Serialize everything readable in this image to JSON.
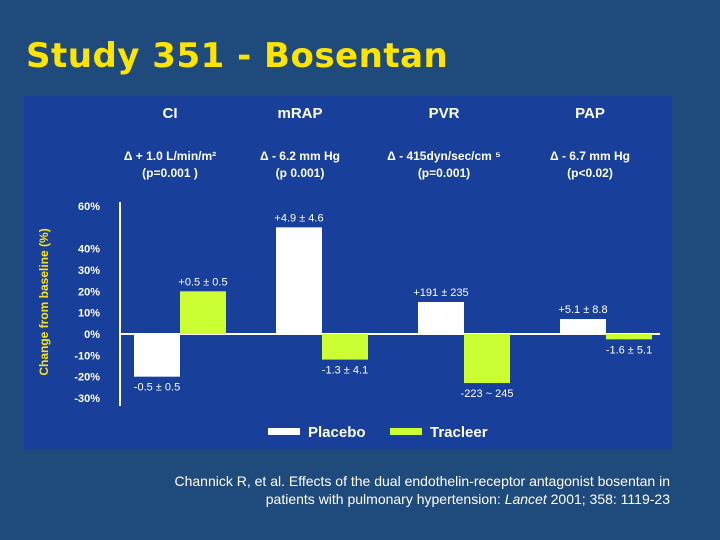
{
  "slide": {
    "title": "Study 351 - Bosentan",
    "citation_line1": "Channick R, et al. Effects of the dual endothelin-receptor antagonist bosentan in",
    "citation_line2_pre": "patients with pulmonary hypertension:",
    "citation_journal": "Lancet",
    "citation_line2_post": "2001; 358: 1119-23"
  },
  "colors": {
    "panel_bg": "#183f9a",
    "placebo": "#ffffff",
    "tracleer": "#ccff33",
    "text": "#ffffff",
    "ylabel": "#ffe400"
  },
  "chart_data": {
    "type": "bar",
    "ylabel": "Change from baseline (%)",
    "ylim": [
      -30,
      60
    ],
    "yticks": [
      60,
      40,
      30,
      20,
      10,
      0,
      -10,
      -20,
      -30
    ],
    "ytick_labels": [
      "60%",
      "40%",
      "30%",
      "20%",
      "10%",
      "0%",
      "-10%",
      "-20%",
      "-30%"
    ],
    "categories": [
      "CI",
      "mRAP",
      "PVR",
      "PAP"
    ],
    "category_stats": [
      {
        "delta": "Δ + 1.0 L/min/m²",
        "p": "(p=0.001 )"
      },
      {
        "delta": "Δ - 6.2 mm Hg",
        "p": "(p 0.001)"
      },
      {
        "delta": "Δ - 415dyn/sec/cm ⁵",
        "p": "(p=0.001)"
      },
      {
        "delta": "Δ - 6.7 mm Hg",
        "p": "(p<0.02)"
      }
    ],
    "series": [
      {
        "name": "Placebo",
        "values": [
          -20,
          50,
          15,
          7
        ],
        "labels": [
          "-0.5 ± 0.5",
          "+4.9 ± 4.6",
          "+191 ± 235",
          "+5.1 ± 8.8"
        ]
      },
      {
        "name": "Tracleer",
        "values": [
          20,
          -12,
          -23,
          -2.5
        ],
        "labels": [
          "+0.5 ± 0.5",
          "-1.3 ± 4.1",
          "-223 ~ 245",
          "-1.6 ± 5.1"
        ]
      }
    ],
    "legend_placement": "bottom-center"
  }
}
